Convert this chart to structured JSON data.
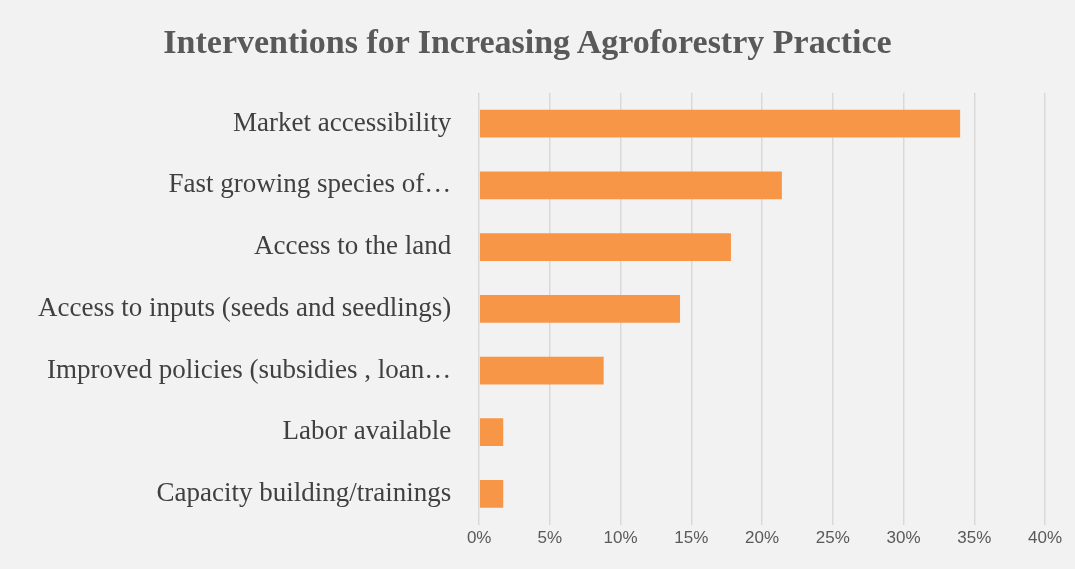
{
  "chart_data": {
    "type": "bar",
    "orientation": "horizontal",
    "title": "Interventions for Increasing Agroforestry Practice",
    "categories": [
      "Market accessibility",
      "Fast growing species of…",
      "Access to the land",
      "Access to inputs (seeds and seedlings)",
      "Improved policies (subsidies , loan…",
      "Labor available",
      "Capacity building/trainings"
    ],
    "values": [
      34.0,
      21.4,
      17.8,
      14.2,
      8.8,
      1.7,
      1.7
    ],
    "color": "#f79646",
    "xlim": [
      0,
      40
    ],
    "xticks": [
      {
        "value": 0,
        "label": "0%"
      },
      {
        "value": 5,
        "label": "5%"
      },
      {
        "value": 10,
        "label": "10%"
      },
      {
        "value": 15,
        "label": "15%"
      },
      {
        "value": 20,
        "label": "20%"
      },
      {
        "value": 25,
        "label": "25%"
      },
      {
        "value": 30,
        "label": "30%"
      },
      {
        "value": 35,
        "label": "35%"
      },
      {
        "value": 40,
        "label": "40%"
      }
    ],
    "grid": "x"
  }
}
